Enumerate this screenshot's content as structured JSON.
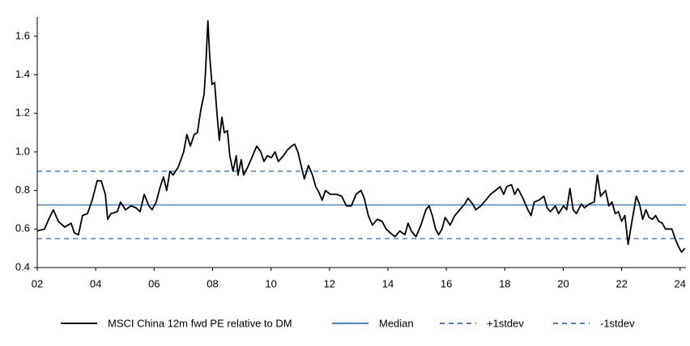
{
  "chart_data": {
    "type": "line",
    "x": [
      2002.0,
      2002.25,
      2002.39,
      2002.55,
      2002.72,
      2002.94,
      2003.16,
      2003.27,
      2003.41,
      2003.55,
      2003.72,
      2003.88,
      2004.05,
      2004.19,
      2004.33,
      2004.41,
      2004.52,
      2004.74,
      2004.85,
      2005.02,
      2005.21,
      2005.38,
      2005.52,
      2005.66,
      2005.82,
      2005.93,
      2006.07,
      2006.21,
      2006.32,
      2006.43,
      2006.54,
      2006.65,
      2006.82,
      2007.01,
      2007.12,
      2007.24,
      2007.37,
      2007.48,
      2007.6,
      2007.71,
      2007.76,
      2007.84,
      2007.9,
      2007.98,
      2008.07,
      2008.15,
      2008.23,
      2008.32,
      2008.4,
      2008.51,
      2008.59,
      2008.7,
      2008.81,
      2008.87,
      2008.98,
      2009.06,
      2009.2,
      2009.37,
      2009.51,
      2009.65,
      2009.76,
      2009.87,
      2010.01,
      2010.14,
      2010.25,
      2010.42,
      2010.56,
      2010.7,
      2010.81,
      2010.92,
      2011.03,
      2011.14,
      2011.28,
      2011.42,
      2011.53,
      2011.64,
      2011.75,
      2011.86,
      2012.03,
      2012.25,
      2012.42,
      2012.58,
      2012.75,
      2012.91,
      2013.08,
      2013.19,
      2013.33,
      2013.47,
      2013.63,
      2013.8,
      2013.94,
      2014.08,
      2014.24,
      2014.41,
      2014.58,
      2014.69,
      2014.8,
      2014.96,
      2015.13,
      2015.3,
      2015.41,
      2015.52,
      2015.63,
      2015.74,
      2015.85,
      2015.96,
      2016.13,
      2016.29,
      2016.46,
      2016.63,
      2016.74,
      2016.9,
      2017.01,
      2017.18,
      2017.35,
      2017.51,
      2017.68,
      2017.84,
      2017.96,
      2018.07,
      2018.23,
      2018.34,
      2018.45,
      2018.62,
      2018.79,
      2018.9,
      2019.01,
      2019.17,
      2019.34,
      2019.45,
      2019.56,
      2019.73,
      2019.84,
      2020.01,
      2020.12,
      2020.23,
      2020.34,
      2020.45,
      2020.62,
      2020.73,
      2020.89,
      2021.06,
      2021.17,
      2021.28,
      2021.45,
      2021.56,
      2021.67,
      2021.78,
      2021.89,
      2022.0,
      2022.11,
      2022.22,
      2022.33,
      2022.5,
      2022.61,
      2022.72,
      2022.83,
      2022.94,
      2023.05,
      2023.16,
      2023.27,
      2023.39,
      2023.5,
      2023.61,
      2023.72,
      2023.83,
      2023.94,
      2024.05,
      2024.16
    ],
    "series": [
      {
        "name": "MSCI China 12m fwd PE relative to DM",
        "color": "#000000",
        "values": [
          0.59,
          0.6,
          0.65,
          0.7,
          0.64,
          0.61,
          0.63,
          0.58,
          0.57,
          0.67,
          0.68,
          0.75,
          0.85,
          0.85,
          0.78,
          0.65,
          0.68,
          0.69,
          0.74,
          0.7,
          0.72,
          0.71,
          0.69,
          0.78,
          0.72,
          0.7,
          0.74,
          0.82,
          0.87,
          0.8,
          0.9,
          0.88,
          0.92,
          1.0,
          1.09,
          1.03,
          1.09,
          1.1,
          1.22,
          1.3,
          1.42,
          1.68,
          1.5,
          1.35,
          1.36,
          1.2,
          1.06,
          1.18,
          1.1,
          1.11,
          0.98,
          0.9,
          0.98,
          0.88,
          0.96,
          0.88,
          0.92,
          0.98,
          1.03,
          1.0,
          0.95,
          0.98,
          0.97,
          1.0,
          0.95,
          0.98,
          1.01,
          1.03,
          1.04,
          1.0,
          0.93,
          0.86,
          0.93,
          0.88,
          0.82,
          0.79,
          0.75,
          0.8,
          0.78,
          0.78,
          0.77,
          0.72,
          0.72,
          0.78,
          0.8,
          0.76,
          0.67,
          0.62,
          0.65,
          0.64,
          0.6,
          0.58,
          0.56,
          0.59,
          0.57,
          0.63,
          0.59,
          0.56,
          0.62,
          0.7,
          0.72,
          0.67,
          0.6,
          0.57,
          0.6,
          0.66,
          0.62,
          0.67,
          0.7,
          0.73,
          0.76,
          0.73,
          0.7,
          0.72,
          0.75,
          0.78,
          0.8,
          0.82,
          0.78,
          0.82,
          0.83,
          0.78,
          0.81,
          0.76,
          0.7,
          0.67,
          0.74,
          0.75,
          0.77,
          0.71,
          0.69,
          0.72,
          0.68,
          0.72,
          0.7,
          0.81,
          0.7,
          0.68,
          0.73,
          0.71,
          0.73,
          0.74,
          0.88,
          0.77,
          0.8,
          0.72,
          0.74,
          0.68,
          0.69,
          0.64,
          0.67,
          0.52,
          0.62,
          0.77,
          0.73,
          0.65,
          0.7,
          0.66,
          0.65,
          0.67,
          0.64,
          0.63,
          0.6,
          0.6,
          0.6,
          0.55,
          0.51,
          0.48,
          0.5
        ]
      }
    ],
    "hlines": [
      {
        "name": "Median",
        "value": 0.725,
        "color": "#4f81bd",
        "style": "solid"
      },
      {
        "name": "+1stdev",
        "value": 0.9,
        "color": "#4f81bd",
        "style": "dashed"
      },
      {
        "name": "-1stdev",
        "value": 0.55,
        "color": "#4f81bd",
        "style": "dashed"
      }
    ],
    "xlim": [
      2002,
      2024.2
    ],
    "xticks": [
      {
        "value": 2002,
        "label": "02"
      },
      {
        "value": 2004,
        "label": "04"
      },
      {
        "value": 2006,
        "label": "06"
      },
      {
        "value": 2008,
        "label": "08"
      },
      {
        "value": 2010,
        "label": "10"
      },
      {
        "value": 2012,
        "label": "12"
      },
      {
        "value": 2014,
        "label": "14"
      },
      {
        "value": 2016,
        "label": "16"
      },
      {
        "value": 2018,
        "label": "18"
      },
      {
        "value": 2020,
        "label": "20"
      },
      {
        "value": 2022,
        "label": "22"
      },
      {
        "value": 2024,
        "label": "24"
      }
    ],
    "ylim": [
      0.4,
      1.7
    ],
    "yticks": [
      0.4,
      0.6,
      0.8,
      {
        "value": 1.0,
        "label": "1.0"
      },
      1.2,
      1.4,
      1.6
    ],
    "legend": "bottom"
  }
}
